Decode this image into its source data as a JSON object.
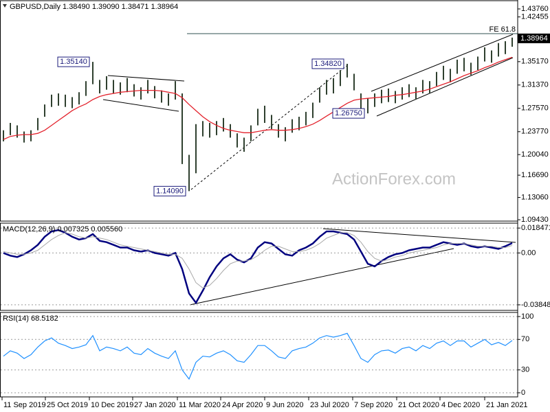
{
  "chart_data": [
    {
      "type": "ohlc",
      "title": "GBPUSD,Daily  1.38490 1.39090 1.38471 1.38964",
      "watermark": "ActionForex.com",
      "color": "#2e3f2e",
      "high": [
        1.24,
        1.252,
        1.248,
        1.238,
        1.24,
        1.26,
        1.282,
        1.298,
        1.3,
        1.298,
        1.294,
        1.302,
        1.32,
        1.3514,
        1.322,
        1.328,
        1.322,
        1.318,
        1.325,
        1.315,
        1.31,
        1.322,
        1.312,
        1.305,
        1.3,
        1.32,
        1.3,
        1.2,
        1.25,
        1.255,
        1.252,
        1.255,
        1.26,
        1.25,
        1.235,
        1.228,
        1.248,
        1.275,
        1.28,
        1.265,
        1.25,
        1.245,
        1.258,
        1.262,
        1.27,
        1.285,
        1.31,
        1.322,
        1.325,
        1.338,
        1.3482,
        1.332,
        1.3,
        1.292,
        1.3,
        1.306,
        1.308,
        1.304,
        1.31,
        1.315,
        1.31,
        1.322,
        1.32,
        1.335,
        1.345,
        1.34,
        1.355,
        1.358,
        1.35,
        1.36,
        1.375,
        1.37,
        1.382,
        1.385,
        1.3909
      ],
      "low": [
        1.222,
        1.232,
        1.228,
        1.22,
        1.222,
        1.24,
        1.262,
        1.278,
        1.28,
        1.278,
        1.276,
        1.282,
        1.296,
        1.315,
        1.3,
        1.306,
        1.3,
        1.298,
        1.302,
        1.295,
        1.29,
        1.3,
        1.292,
        1.285,
        1.28,
        1.29,
        1.185,
        1.1409,
        1.17,
        1.23,
        1.228,
        1.232,
        1.238,
        1.228,
        1.212,
        1.205,
        1.222,
        1.248,
        1.252,
        1.242,
        1.228,
        1.222,
        1.236,
        1.24,
        1.248,
        1.26,
        1.285,
        1.298,
        1.3,
        1.312,
        1.326,
        1.305,
        1.272,
        1.2675,
        1.278,
        1.284,
        1.286,
        1.284,
        1.29,
        1.294,
        1.29,
        1.3,
        1.3,
        1.312,
        1.322,
        1.318,
        1.332,
        1.336,
        1.33,
        1.338,
        1.352,
        1.35,
        1.36,
        1.364,
        1.376
      ],
      "ma": {
        "color": "#e3222c",
        "values": [
          1.225,
          1.23,
          1.232,
          1.233,
          1.233,
          1.235,
          1.24,
          1.248,
          1.256,
          1.264,
          1.272,
          1.278,
          1.283,
          1.29,
          1.295,
          1.298,
          1.3,
          1.302,
          1.303,
          1.304,
          1.305,
          1.305,
          1.305,
          1.304,
          1.302,
          1.3,
          1.293,
          1.282,
          1.272,
          1.262,
          1.254,
          1.248,
          1.243,
          1.24,
          1.238,
          1.236,
          1.236,
          1.238,
          1.24,
          1.241,
          1.24,
          1.24,
          1.241,
          1.243,
          1.246,
          1.25,
          1.256,
          1.263,
          1.27,
          1.277,
          1.284,
          1.289,
          1.291,
          1.292,
          1.293,
          1.294,
          1.295,
          1.297,
          1.298,
          1.3,
          1.302,
          1.304,
          1.307,
          1.311,
          1.315,
          1.319,
          1.324,
          1.329,
          1.333,
          1.337,
          1.342,
          1.346,
          1.351,
          1.355,
          1.359
        ]
      },
      "xlim": [
        -0.5,
        74.5
      ],
      "xticks": [
        {
          "value": -0.2,
          "label": "11 Sep 2019"
        },
        {
          "value": 6.1,
          "label": "25 Oct 2019"
        },
        {
          "value": 12.5,
          "label": "10 Dec 2019"
        },
        {
          "value": 18.8,
          "label": "27 Jan 2020"
        },
        {
          "value": 25.3,
          "label": "11 Mar 2020"
        },
        {
          "value": 31.6,
          "label": "24 Apr 2020"
        },
        {
          "value": 38,
          "label": "9 Jun 2020"
        },
        {
          "value": 44.4,
          "label": "23 Jul 2020"
        },
        {
          "value": 50.8,
          "label": "7 Sep 2020"
        },
        {
          "value": 57.2,
          "label": "21 Oct 2020"
        },
        {
          "value": 63.5,
          "label": "4 Dec 2020"
        },
        {
          "value": 70,
          "label": "21 Jan 2021"
        }
      ],
      "ylim": [
        1.0921,
        1.451
      ],
      "yticks": [
        {
          "value": 1.4376,
          "label": "1.43760"
        },
        {
          "value": 1.42455,
          "label": "1.42455"
        },
        {
          "value": 1.3517,
          "label": "1.35170"
        },
        {
          "value": 1.3137,
          "label": "1.31370"
        },
        {
          "value": 1.2757,
          "label": "1.27570"
        },
        {
          "value": 1.2377,
          "label": "1.23770"
        },
        {
          "value": 1.2004,
          "label": "1.20040"
        },
        {
          "value": 1.1669,
          "label": "1.16690"
        },
        {
          "value": 1.1306,
          "label": "1.13060"
        },
        {
          "value": 1.0943,
          "label": "1.09430"
        }
      ],
      "last_price": {
        "value": 1.38964,
        "label": "1.38964"
      },
      "level": {
        "value": 1.3973,
        "label": "FE 61.8"
      },
      "annotations": [
        {
          "x": 13,
          "value": 1.3514,
          "label": "1.35140"
        },
        {
          "x": 50,
          "value": 1.3482,
          "label": "1.34820"
        },
        {
          "x": 53,
          "value": 1.2675,
          "label": "1.26750"
        },
        {
          "x": 27,
          "value": 1.1409,
          "label": "1.14090"
        }
      ]
    },
    {
      "type": "macd",
      "title": "MACD(12,26,9) 0.007325 0.005560",
      "series": [
        {
          "color": "#00007f",
          "values": [
            0.0,
            -0.002,
            -0.003,
            -0.001,
            0.002,
            0.006,
            0.012,
            0.016,
            0.017,
            0.015,
            0.012,
            0.01,
            0.011,
            0.014,
            0.009,
            0.008,
            0.006,
            0.004,
            0.004,
            0.002,
            0.001,
            0.002,
            0.0,
            -0.001,
            -0.002,
            0.0,
            -0.012,
            -0.03,
            -0.037,
            -0.028,
            -0.018,
            -0.01,
            -0.004,
            -0.001,
            -0.005,
            -0.007,
            -0.004,
            0.004,
            0.008,
            0.007,
            0.003,
            -0.001,
            -0.002,
            0.002,
            0.004,
            0.007,
            0.012,
            0.016,
            0.016,
            0.015,
            0.014,
            0.01,
            0.001,
            -0.008,
            -0.01,
            -0.006,
            -0.003,
            -0.001,
            0.0,
            0.002,
            0.003,
            0.004,
            0.004,
            0.006,
            0.008,
            0.007,
            0.006,
            0.007,
            0.005,
            0.004,
            0.005,
            0.004,
            0.003,
            0.005,
            0.007325
          ]
        },
        {
          "color": "#a8a8a8",
          "values": [
            0.001,
            0.0,
            -0.001,
            -0.001,
            0.0,
            0.002,
            0.006,
            0.01,
            0.013,
            0.015,
            0.014,
            0.012,
            0.011,
            0.012,
            0.011,
            0.01,
            0.008,
            0.006,
            0.005,
            0.004,
            0.003,
            0.002,
            0.001,
            0.0,
            -0.001,
            -0.001,
            -0.004,
            -0.012,
            -0.022,
            -0.026,
            -0.024,
            -0.019,
            -0.013,
            -0.008,
            -0.006,
            -0.006,
            -0.005,
            -0.002,
            0.002,
            0.005,
            0.005,
            0.003,
            0.001,
            0.001,
            0.002,
            0.004,
            0.007,
            0.011,
            0.013,
            0.015,
            0.015,
            0.013,
            0.008,
            0.001,
            -0.004,
            -0.006,
            -0.005,
            -0.003,
            -0.002,
            0.0,
            0.001,
            0.002,
            0.003,
            0.004,
            0.006,
            0.007,
            0.007,
            0.007,
            0.006,
            0.005,
            0.005,
            0.005,
            0.004,
            0.004,
            0.00556
          ]
        }
      ],
      "ylim": [
        -0.0426,
        0.0221
      ],
      "yticks": [
        {
          "value": 0.018471,
          "label": "0.018471"
        },
        {
          "value": 0,
          "label": "0.00"
        },
        {
          "value": -0.038486,
          "label": "-0.038486"
        }
      ]
    },
    {
      "type": "line",
      "title": "RSI(14) 68.5182",
      "color": "#1e90ff",
      "values": [
        48,
        55,
        52,
        45,
        50,
        60,
        68,
        72,
        65,
        62,
        58,
        60,
        63,
        75,
        55,
        60,
        58,
        55,
        60,
        52,
        50,
        58,
        52,
        48,
        45,
        55,
        30,
        18,
        40,
        48,
        47,
        52,
        55,
        50,
        42,
        40,
        50,
        62,
        62,
        55,
        47,
        45,
        55,
        58,
        60,
        65,
        72,
        75,
        73,
        75,
        78,
        62,
        45,
        40,
        50,
        55,
        56,
        52,
        58,
        60,
        55,
        62,
        58,
        65,
        68,
        62,
        68,
        68,
        60,
        65,
        70,
        63,
        66,
        62,
        68.5182
      ],
      "ylim": [
        -5.4,
        105.4
      ],
      "yticks": [
        100,
        70,
        30,
        0
      ]
    }
  ]
}
